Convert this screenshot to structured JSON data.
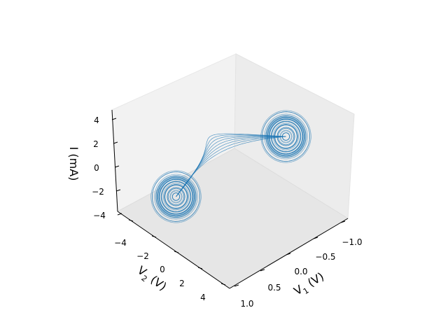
{
  "chart_data": {
    "type": "line",
    "projection": "3d",
    "title": "",
    "axes": {
      "x": {
        "label_main": "V",
        "label_sub": "1",
        "label_unit": " (V)",
        "ticks": [
          -1.0,
          -0.5,
          0.0,
          0.5,
          1.0
        ],
        "tick_labels": [
          "−1.0",
          "−0.5",
          "0.0",
          "0.5",
          "1.0"
        ],
        "lim": [
          -1.2,
          1.2
        ]
      },
      "y": {
        "label_main": "V",
        "label_sub": "2",
        "label_unit": " (V)",
        "ticks": [
          -4,
          -2,
          0,
          2,
          4
        ],
        "tick_labels": [
          "−4",
          "−2",
          "0",
          "2",
          "4"
        ],
        "lim": [
          -5,
          5
        ]
      },
      "z": {
        "label": "I (mA)",
        "ticks": [
          -4,
          -2,
          0,
          2,
          4
        ],
        "tick_labels": [
          "−4",
          "−2",
          "0",
          "2",
          "4"
        ],
        "lim": [
          -4.2,
          4.7
        ]
      }
    },
    "grid": false,
    "legend": "none",
    "series": [
      {
        "color": "#1f77b4",
        "attractor": "double-scroll",
        "lobes": [
          {
            "center": [
              -0.55,
              -2.5,
              2.5
            ],
            "radius_min": 0.3,
            "radius_max": 2.2
          },
          {
            "center": [
              0.55,
              2.5,
              -2.5
            ],
            "radius_min": 0.3,
            "radius_max": 2.2
          }
        ]
      }
    ]
  }
}
